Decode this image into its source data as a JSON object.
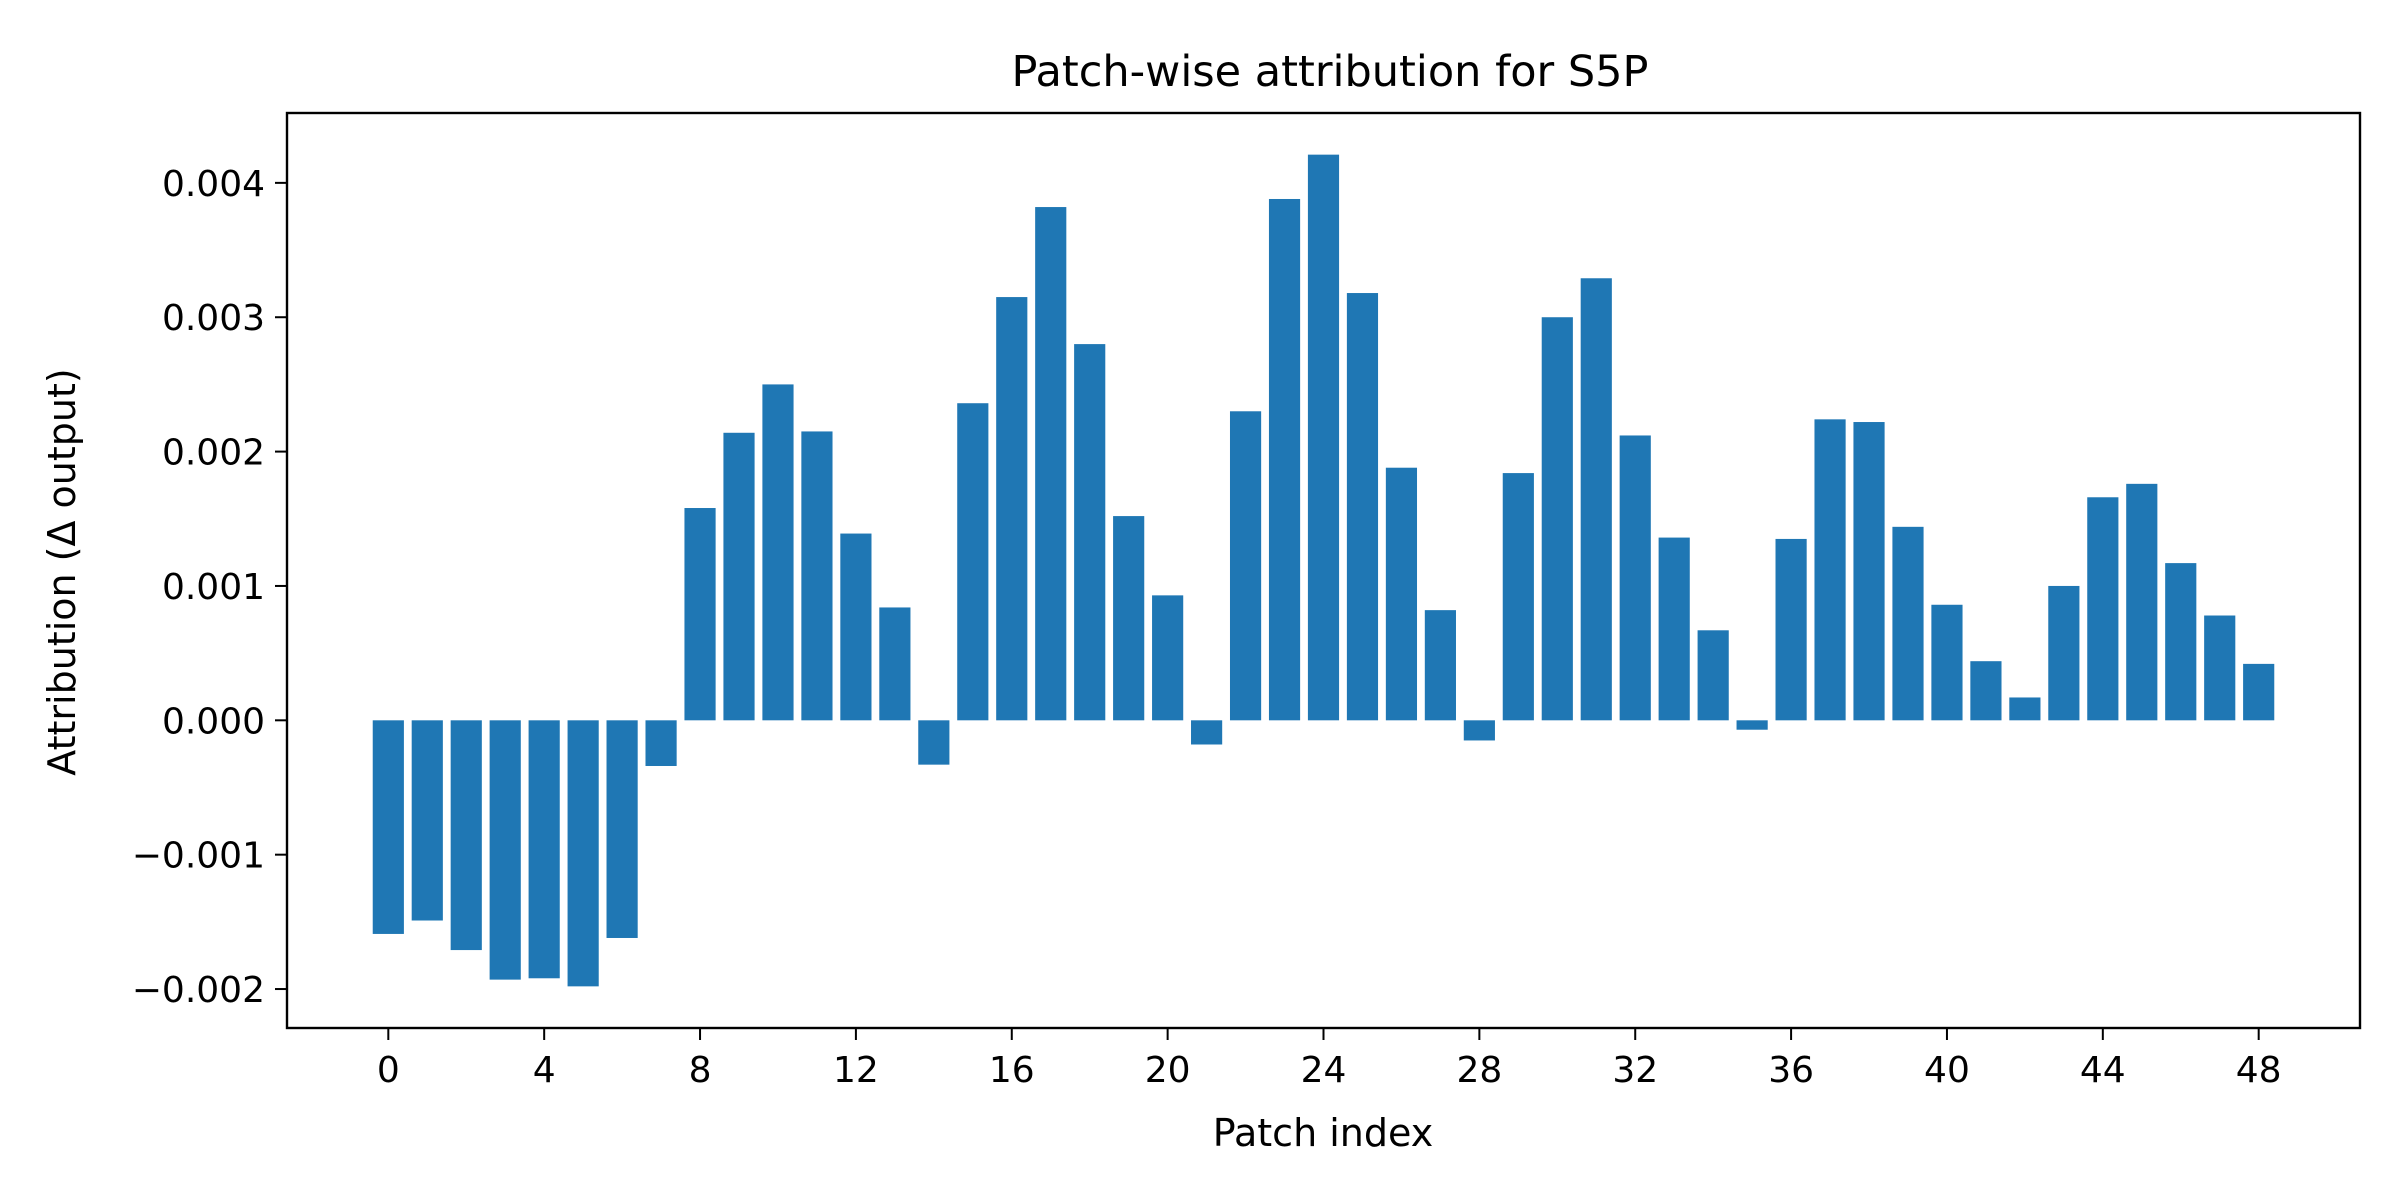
{
  "chart_data": {
    "type": "bar",
    "title": "Patch-wise attribution for S5P",
    "xlabel": "Patch index",
    "ylabel": "Attribution (Δ output)",
    "bar_color": "#1f77b4",
    "x": [
      0,
      1,
      2,
      3,
      4,
      5,
      6,
      7,
      8,
      9,
      10,
      11,
      12,
      13,
      14,
      15,
      16,
      17,
      18,
      19,
      20,
      21,
      22,
      23,
      24,
      25,
      26,
      27,
      28,
      29,
      30,
      31,
      32,
      33,
      34,
      35,
      36,
      37,
      38,
      39,
      40,
      41,
      42,
      43,
      44,
      45,
      46,
      47,
      48
    ],
    "values": [
      -0.00159,
      -0.00149,
      -0.00171,
      -0.00193,
      -0.00192,
      -0.00198,
      -0.00162,
      -0.00034,
      0.00158,
      0.00214,
      0.0025,
      0.00215,
      0.00139,
      0.00084,
      -0.00033,
      0.00236,
      0.00315,
      0.00382,
      0.0028,
      0.00152,
      0.00093,
      -0.00018,
      0.0023,
      0.00388,
      0.00421,
      0.00318,
      0.00188,
      0.00082,
      -0.00015,
      0.00184,
      0.003,
      0.00329,
      0.00212,
      0.00136,
      0.00067,
      -7e-05,
      0.00135,
      0.00224,
      0.00222,
      0.00144,
      0.00086,
      0.00044,
      0.00017,
      0.001,
      0.00166,
      0.00176,
      0.00117,
      0.00078,
      0.00042
    ],
    "xlim": [
      -2.6,
      50.6
    ],
    "ylim": [
      -0.00229,
      0.00452
    ],
    "xticks": [
      0,
      4,
      8,
      12,
      16,
      20,
      24,
      28,
      32,
      36,
      40,
      44,
      48
    ],
    "xtick_labels": [
      "0",
      "4",
      "8",
      "12",
      "16",
      "20",
      "24",
      "28",
      "32",
      "36",
      "40",
      "44",
      "48"
    ],
    "yticks": [
      -0.002,
      -0.001,
      0.0,
      0.001,
      0.002,
      0.003,
      0.004
    ],
    "ytick_labels": [
      "−0.002",
      "−0.001",
      "0.000",
      "0.001",
      "0.002",
      "0.003",
      "0.004"
    ],
    "grid": false,
    "legend": false
  }
}
